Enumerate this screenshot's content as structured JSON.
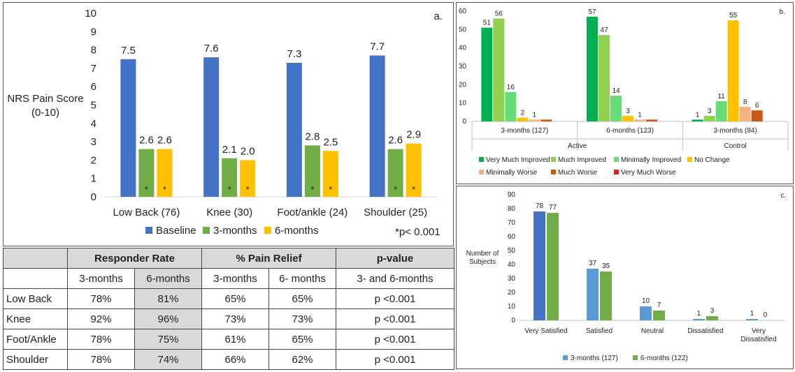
{
  "chart_data": [
    {
      "panel": "a.",
      "type": "bar",
      "ylabel": "NRS Pain Score (0-10)",
      "ylabel_lines": [
        "NRS Pain Score",
        "(0-10)"
      ],
      "ylim": [
        0,
        10
      ],
      "yticks": [
        "0",
        "1",
        "2",
        "3",
        "4",
        "5",
        "6",
        "7",
        "8",
        "9",
        "10"
      ],
      "categories": [
        "Low Back (76)",
        "Knee (30)",
        "Foot/ankle (24)",
        "Shoulder (25)"
      ],
      "series": [
        {
          "name": "Baseline",
          "color": "#4472c4",
          "values": [
            7.5,
            7.6,
            7.3,
            7.7
          ],
          "labels": [
            "7.5",
            "7.6",
            "7.3",
            "7.7"
          ],
          "marks": [
            "",
            "",
            "",
            ""
          ]
        },
        {
          "name": "3-months",
          "color": "#70ad47",
          "values": [
            2.6,
            2.1,
            2.8,
            2.6
          ],
          "labels": [
            "2.6",
            "2.1",
            "2.8",
            "2.6"
          ],
          "marks": [
            "*",
            "*",
            "*",
            "*"
          ]
        },
        {
          "name": "6-months",
          "color": "#ffc000",
          "values": [
            2.6,
            2.0,
            2.5,
            2.9
          ],
          "labels": [
            "2.6",
            "2.0",
            "2.5",
            "2.9"
          ],
          "marks": [
            "*",
            "*",
            "*",
            "*"
          ]
        }
      ],
      "annotation": "*p< 0.001",
      "legend": "bottom"
    },
    {
      "panel": "b.",
      "type": "bar",
      "ylim": [
        0,
        60
      ],
      "yticks": [
        "0",
        "10",
        "20",
        "30",
        "40",
        "50",
        "60"
      ],
      "categories": [
        "3-months (127)",
        "6-months (123)",
        "3-months (84)"
      ],
      "groups": [
        {
          "name": "Active",
          "span": [
            0,
            1
          ]
        },
        {
          "name": "Control",
          "span": [
            2,
            2
          ]
        }
      ],
      "series": [
        {
          "name": "Very Much Improved",
          "color": "#00b050",
          "values": [
            51,
            57,
            1
          ],
          "labels": [
            "51",
            "57",
            "1"
          ]
        },
        {
          "name": "Much Improved",
          "color": "#92d050",
          "values": [
            56,
            47,
            3
          ],
          "labels": [
            "56",
            "47",
            "3"
          ]
        },
        {
          "name": "Minimally Improved",
          "color": "#66dd77",
          "values": [
            16,
            14,
            11
          ],
          "labels": [
            "16",
            "14",
            "11"
          ]
        },
        {
          "name": "No Change",
          "color": "#ffc000",
          "values": [
            2,
            3,
            55
          ],
          "labels": [
            "2",
            "3",
            "55"
          ]
        },
        {
          "name": "Minimally Worse",
          "color": "#f4b183",
          "values": [
            1,
            1,
            8
          ],
          "labels": [
            "1",
            "1",
            "8"
          ]
        },
        {
          "name": "Much Worse",
          "color": "#c55a11",
          "values": [
            1,
            1,
            6
          ],
          "labels": [
            "",
            "",
            "6"
          ]
        },
        {
          "name": "Very Much Worse",
          "color": "#e02020",
          "values": [
            0,
            0,
            0
          ],
          "labels": [
            "",
            "",
            ""
          ]
        }
      ],
      "legend": "bottom"
    },
    {
      "panel": "c.",
      "type": "bar",
      "ylabel": "Number of Subjects",
      "ylabel_lines": [
        "Number of",
        "Subjects"
      ],
      "ylim": [
        0,
        90
      ],
      "yticks": [
        "0",
        "10",
        "20",
        "30",
        "40",
        "50",
        "60",
        "70",
        "80",
        "90"
      ],
      "categories": [
        "Very Satisfied",
        "Satisfied",
        "Neutral",
        "Dissatisfied",
        "Very Dissatisfied"
      ],
      "category_lines": [
        [
          "Very Satisfied"
        ],
        [
          "Satisfied"
        ],
        [
          "Neutral"
        ],
        [
          "Dissatisfied"
        ],
        [
          "Very",
          "Dissatisfied"
        ]
      ],
      "series": [
        {
          "name": "3-months (127)",
          "color": "#5b9bd5",
          "values": [
            78,
            37,
            10,
            1,
            1
          ],
          "labels": [
            "78",
            "37",
            "10",
            "1",
            "1"
          ]
        },
        {
          "name": "6-months (122)",
          "color": "#70ad47",
          "values": [
            77,
            35,
            7,
            3,
            0
          ],
          "labels": [
            "77",
            "35",
            "7",
            "3",
            "0"
          ]
        }
      ],
      "highlight": {
        "series": 0,
        "category": 0,
        "color": "#4472c4"
      },
      "legend": "bottom"
    }
  ],
  "table": {
    "headers": {
      "responder_rate": "Responder Rate",
      "pain_relief": "% Pain Relief",
      "pvalue": "p-value"
    },
    "subheaders": {
      "rr_3": "3-months",
      "rr_6": "6-months",
      "pr_3": "3-months",
      "pr_6": "6- months",
      "pv": "3- and 6-months"
    },
    "rows": [
      {
        "label": "Low Back",
        "rr3": "78%",
        "rr6": "81%",
        "pr3": "65%",
        "pr6": "65%",
        "p": "p <0.001"
      },
      {
        "label": "Knee",
        "rr3": "92%",
        "rr6": "96%",
        "pr3": "73%",
        "pr6": "73%",
        "p": "p <0.001"
      },
      {
        "label": "Foot/Ankle",
        "rr3": "78%",
        "rr6": "75%",
        "pr3": "61%",
        "pr6": "65%",
        "p": "p <0.001"
      },
      {
        "label": "Shoulder",
        "rr3": "78%",
        "rr6": "74%",
        "pr3": "66%",
        "pr6": "62%",
        "p": "p <0.001"
      }
    ]
  }
}
